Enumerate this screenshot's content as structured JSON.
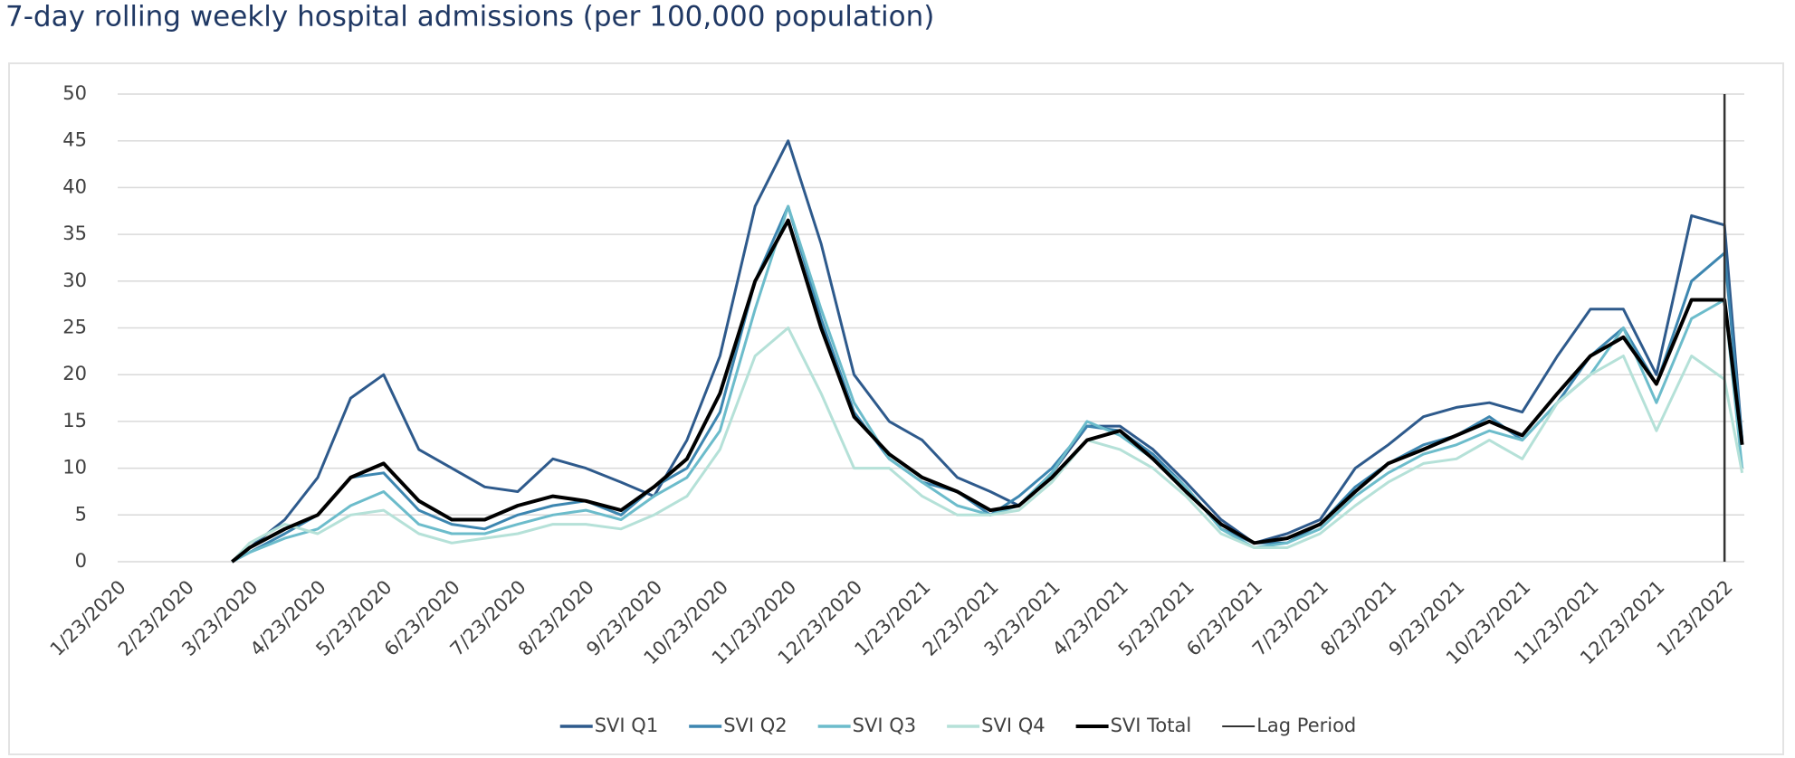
{
  "chart_data": {
    "type": "line",
    "title": "7-day rolling weekly hospital admissions (per 100,000 population)",
    "x": [
      "3/15/2020",
      "3/23/2020",
      "4/8/2020",
      "4/23/2020",
      "5/8/2020",
      "5/23/2020",
      "6/8/2020",
      "6/23/2020",
      "7/8/2020",
      "7/23/2020",
      "8/8/2020",
      "8/23/2020",
      "9/8/2020",
      "9/23/2020",
      "10/8/2020",
      "10/23/2020",
      "11/8/2020",
      "11/23/2020",
      "12/8/2020",
      "12/23/2020",
      "1/8/2021",
      "1/23/2021",
      "2/8/2021",
      "2/23/2021",
      "3/8/2021",
      "3/23/2021",
      "4/8/2021",
      "4/23/2021",
      "5/8/2021",
      "5/23/2021",
      "6/8/2021",
      "6/23/2021",
      "7/8/2021",
      "7/23/2021",
      "8/8/2021",
      "8/23/2021",
      "9/8/2021",
      "9/23/2021",
      "10/8/2021",
      "10/23/2021",
      "11/8/2021",
      "11/23/2021",
      "12/8/2021",
      "12/23/2021",
      "1/8/2022",
      "1/23/2022",
      "1/31/2022"
    ],
    "series": [
      {
        "name": "SVI Q1",
        "color": "#2e5a8c",
        "values": [
          0,
          1.5,
          4.5,
          9,
          17.5,
          20,
          12,
          10,
          8,
          7.5,
          11,
          10,
          8.5,
          7,
          13,
          22,
          38,
          45,
          34,
          20,
          15,
          13,
          9,
          7.5,
          6,
          9.5,
          14.5,
          14.5,
          12,
          8.5,
          4.5,
          2,
          3,
          4.5,
          10,
          12.5,
          15.5,
          16.5,
          17,
          16,
          22,
          27,
          27,
          20,
          37,
          36,
          13
        ]
      },
      {
        "name": "SVI Q2",
        "color": "#3d86b0",
        "values": [
          0,
          1,
          3,
          5,
          9,
          9.5,
          5.5,
          4,
          3.5,
          5,
          6,
          6.5,
          5,
          8,
          10,
          16,
          30,
          38,
          26,
          16,
          11,
          8.5,
          7.5,
          5,
          7,
          10,
          14.5,
          14,
          11.5,
          8,
          3.5,
          2,
          2,
          4,
          8,
          10.5,
          12.5,
          13.5,
          15.5,
          13,
          17,
          22,
          25,
          19,
          30,
          33,
          13
        ]
      },
      {
        "name": "SVI Q3",
        "color": "#6cbccb",
        "values": [
          0,
          1,
          2.5,
          3.5,
          6,
          7.5,
          4,
          3,
          3,
          4,
          5,
          5.5,
          4.5,
          7,
          9,
          14,
          27,
          38,
          27,
          17,
          11,
          8.5,
          6,
          5,
          6,
          9.5,
          15,
          13.5,
          11,
          8,
          3.5,
          1.5,
          2,
          3.5,
          7,
          9.5,
          11.5,
          12.5,
          14,
          13,
          17,
          20,
          25,
          17,
          26,
          28,
          10
        ]
      },
      {
        "name": "SVI Q4",
        "color": "#b5e1d8",
        "values": [
          0,
          2,
          4,
          3,
          5,
          5.5,
          3,
          2,
          2.5,
          3,
          4,
          4,
          3.5,
          5,
          7,
          12,
          22,
          25,
          18,
          10,
          10,
          7,
          5,
          5,
          5.5,
          8.5,
          13,
          12,
          10,
          7,
          3,
          1.5,
          1.5,
          3,
          6,
          8.5,
          10.5,
          11,
          13,
          11,
          17,
          20,
          22,
          14,
          22,
          19.5,
          9.5
        ]
      },
      {
        "name": "SVI Total",
        "color": "#000000",
        "values": [
          0,
          1.5,
          3.5,
          5,
          9,
          10.5,
          6.5,
          4.5,
          4.5,
          6,
          7,
          6.5,
          5.5,
          8,
          11,
          18,
          30,
          36.5,
          25,
          15.5,
          11.5,
          9,
          7.5,
          5.5,
          6,
          9,
          13,
          14,
          11,
          7.5,
          4,
          2,
          2.5,
          4,
          7.5,
          10.5,
          12,
          13.5,
          15,
          13.5,
          18,
          22,
          24,
          19,
          28,
          28,
          12.5
        ]
      }
    ],
    "lag_period": {
      "name": "Lag Period",
      "x": "1/23/2022",
      "color": "#333333"
    },
    "xlim": [
      "1/23/2020",
      "2/1/2022"
    ],
    "xticks": [
      "1/23/2020",
      "2/23/2020",
      "3/23/2020",
      "4/23/2020",
      "5/23/2020",
      "6/23/2020",
      "7/23/2020",
      "8/23/2020",
      "9/23/2020",
      "10/23/2020",
      "11/23/2020",
      "12/23/2020",
      "1/23/2021",
      "2/23/2021",
      "3/23/2021",
      "4/23/2021",
      "5/23/2021",
      "6/23/2021",
      "7/23/2021",
      "8/23/2021",
      "9/23/2021",
      "10/23/2021",
      "11/23/2021",
      "12/23/2021",
      "1/23/2022"
    ],
    "ylim": [
      0,
      50
    ],
    "yticks": [
      0,
      5,
      10,
      15,
      20,
      25,
      30,
      35,
      40,
      45,
      50
    ],
    "grid": true
  }
}
